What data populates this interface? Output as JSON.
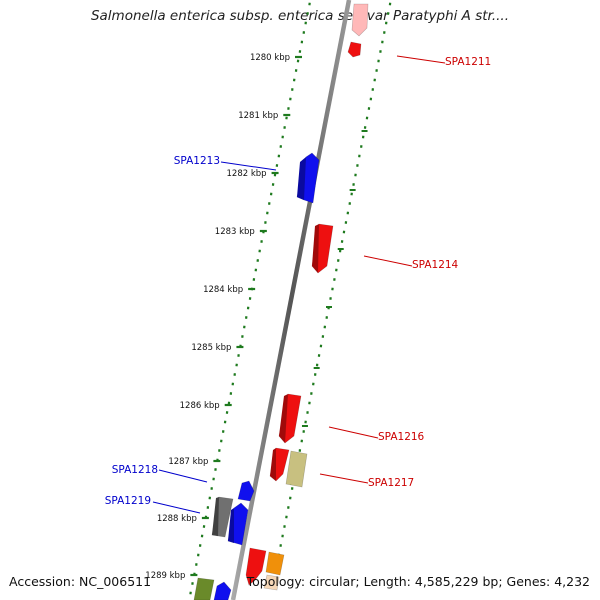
{
  "title": "Salmonella enterica subsp. enterica serovar Paratyphi A str....",
  "footer": {
    "accession": "Accession: NC_006511",
    "summary": "Topology: circular; Length: 4,585,229 bp; Genes: 4,232"
  },
  "colors": {
    "backbone": "#808080",
    "tick": "#1e7a1e",
    "forward_gene": "#1010ee",
    "reverse_gene": "#ee1010",
    "other_gene": "#707070",
    "olive_gene": "#c8c080",
    "green_gene": "#6a8a2a",
    "orange_gene": "#f0900a",
    "forward_label": "#0000cc",
    "reverse_label": "#cc0000"
  },
  "ticks": [
    "1280 kbp",
    "1281 kbp",
    "1282 kbp",
    "1283 kbp",
    "1284 kbp",
    "1285 kbp",
    "1286 kbp",
    "1287 kbp",
    "1288 kbp",
    "1289 kbp"
  ],
  "labels": [
    {
      "text": "SPA1211",
      "strand": "reverse"
    },
    {
      "text": "SPA1213",
      "strand": "forward"
    },
    {
      "text": "SPA1214",
      "strand": "reverse"
    },
    {
      "text": "SPA1216",
      "strand": "reverse"
    },
    {
      "text": "SPA1217",
      "strand": "reverse"
    },
    {
      "text": "SPA1218",
      "strand": "forward"
    },
    {
      "text": "SPA1219",
      "strand": "forward"
    }
  ]
}
